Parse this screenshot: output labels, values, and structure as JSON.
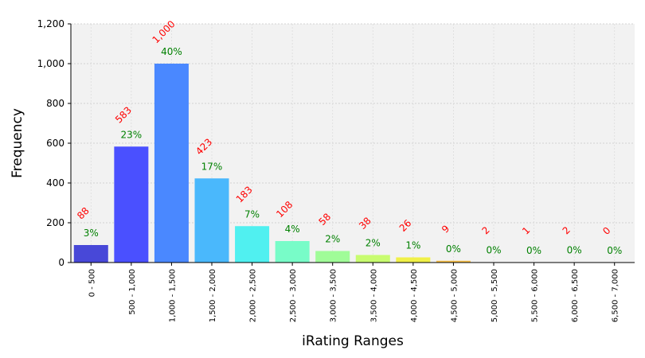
{
  "chart_data": {
    "type": "bar",
    "xlabel": "iRating Ranges",
    "ylabel": "Frequency",
    "ylim": [
      0,
      1200
    ],
    "yticks": [
      "0",
      "200",
      "400",
      "600",
      "800",
      "1,000",
      "1,200"
    ],
    "ytick_values": [
      0,
      200,
      400,
      600,
      800,
      1000,
      1200
    ],
    "grid": true,
    "categories": [
      "0 - 500",
      "500 - 1,000",
      "1,000 - 1,500",
      "1,500 - 2,000",
      "2,000 - 2,500",
      "2,500 - 3,000",
      "3,000 - 3,500",
      "3,500 - 4,000",
      "4,000 - 4,500",
      "4,500 - 5,000",
      "5,000 - 5,500",
      "5,500 - 6,000",
      "6,000 - 6,500",
      "6,500 - 7,000"
    ],
    "values": [
      88,
      583,
      1000,
      423,
      183,
      108,
      58,
      38,
      26,
      9,
      2,
      1,
      2,
      0
    ],
    "value_labels": [
      "88",
      "583",
      "1,000",
      "423",
      "183",
      "108",
      "58",
      "38",
      "26",
      "9",
      "2",
      "1",
      "2",
      "0"
    ],
    "percent_labels": [
      "3%",
      "23%",
      "40%",
      "17%",
      "7%",
      "4%",
      "2%",
      "2%",
      "1%",
      "0%",
      "0%",
      "0%",
      "0%",
      "0%"
    ],
    "colors": [
      "#4848d8",
      "#4a50ff",
      "#4a88ff",
      "#4ab8fc",
      "#50f0f0",
      "#78fcc8",
      "#a0fc98",
      "#c8fc70",
      "#f0f048",
      "#f8c048",
      "#f89040",
      "#f86038",
      "#f03030",
      "#d02020"
    ],
    "value_label_color": "#ff0000",
    "percent_label_color": "#008000",
    "plot_background": "#f2f2f2"
  }
}
